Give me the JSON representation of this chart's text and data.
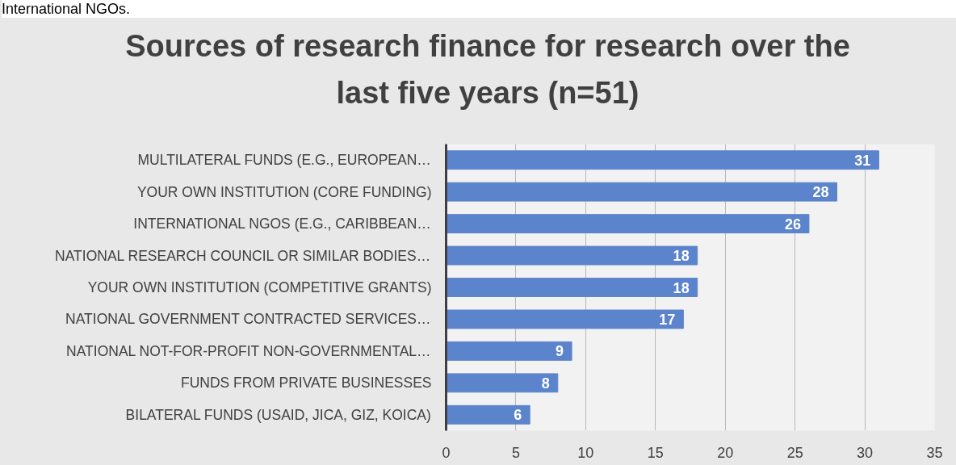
{
  "chart_data": {
    "type": "bar",
    "orientation": "horizontal",
    "title": "Sources of research finance for research over the last five years (n=51)",
    "annotations": [
      "International NGOs."
    ],
    "categories": [
      "MULTILATERAL FUNDS (E.G., EUROPEAN…",
      "YOUR OWN INSTITUTION (CORE FUNDING)",
      "INTERNATIONAL NGOS (E.G., CARIBBEAN…",
      "NATIONAL RESEARCH COUNCIL OR SIMILAR BODIES…",
      "YOUR OWN INSTITUTION (COMPETITIVE GRANTS)",
      "NATIONAL GOVERNMENT CONTRACTED SERVICES…",
      "NATIONAL NOT-FOR-PROFIT NON-GOVERNMENTAL…",
      "FUNDS FROM PRIVATE BUSINESSES",
      "BILATERAL FUNDS (USAID, JICA, GIZ, KOICA)"
    ],
    "values": [
      31,
      28,
      26,
      18,
      18,
      17,
      9,
      8,
      6
    ],
    "color": "#5b84cc",
    "xlim": [
      0,
      35
    ],
    "xticks": [
      0,
      5,
      10,
      15,
      20,
      25,
      30,
      35
    ],
    "grid": "x",
    "data_labels": true
  }
}
